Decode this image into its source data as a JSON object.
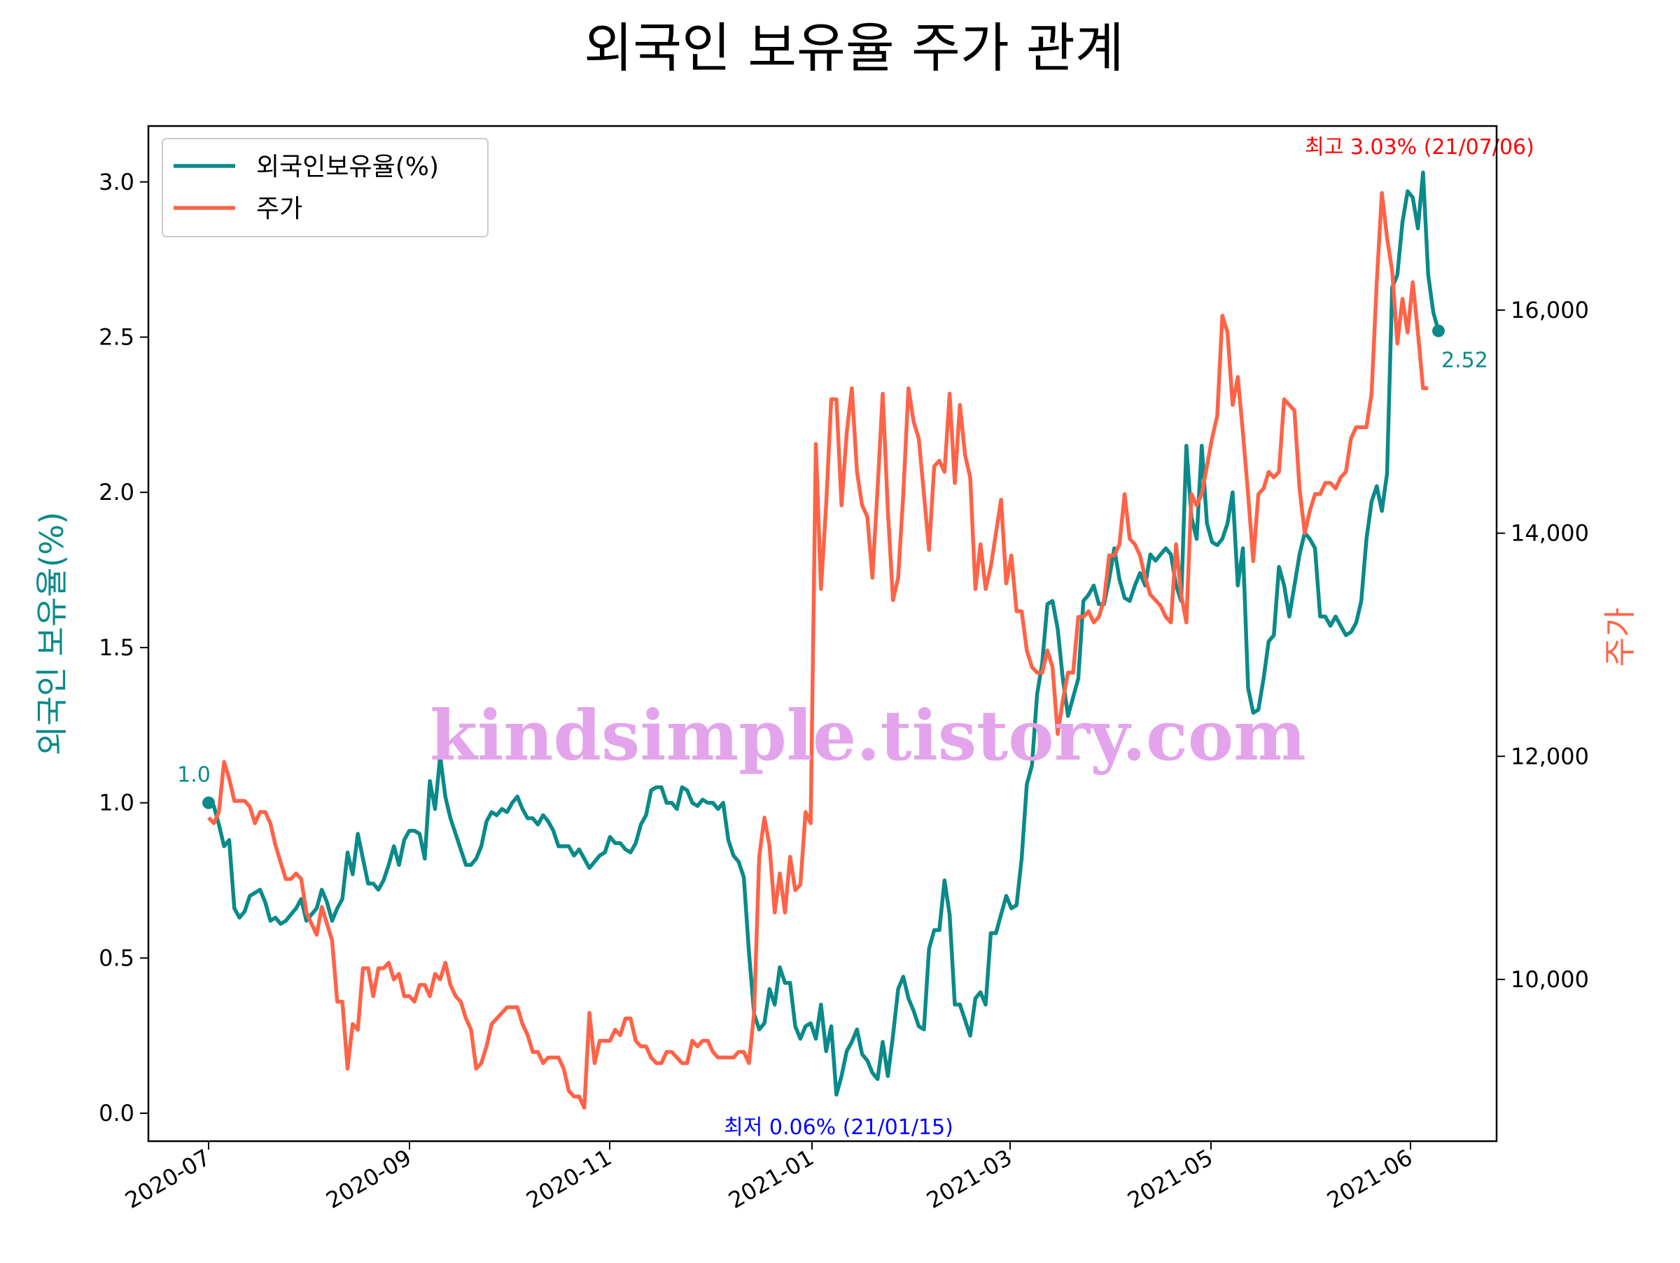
{
  "chart_data": {
    "type": "line",
    "title": "외국인 보유율 주가 관계",
    "ylabel_left": "외국인 보유율(%)",
    "ylabel_right": "주가",
    "ylim_left": [
      -0.09,
      3.18
    ],
    "ylim_right": [
      8550,
      17650
    ],
    "yticks_left": [
      "0.0",
      "0.5",
      "1.0",
      "1.5",
      "2.0",
      "2.5",
      "3.0"
    ],
    "yticks_right": [
      "10,000",
      "12,000",
      "14,000",
      "16,000"
    ],
    "xticks": [
      "2020-07",
      "2020-09",
      "2020-11",
      "2021-01",
      "2021-03",
      "2021-05",
      "2021-06"
    ],
    "legend": {
      "position": "upper left",
      "entries": [
        "외국인보유율(%)",
        "주가"
      ]
    },
    "colors": {
      "ownership": "#0a8a8a",
      "price": "#ff6347",
      "max_annotation": "#ff0000",
      "min_annotation": "#0000ff",
      "watermark": "#e3a4ec"
    },
    "annotations": {
      "start": "1.0",
      "end": "2.52",
      "max": "최고 3.03% (21/07/06)",
      "min": "최저 0.06% (21/01/15)"
    },
    "watermark": "kindsimple.tistory.com",
    "series": [
      {
        "name": "외국인보유율(%)",
        "axis": "left",
        "values": [
          1.0,
          0.99,
          0.93,
          0.86,
          0.88,
          0.66,
          0.63,
          0.65,
          0.7,
          0.71,
          0.72,
          0.68,
          0.62,
          0.63,
          0.61,
          0.62,
          0.64,
          0.66,
          0.69,
          0.62,
          0.64,
          0.66,
          0.72,
          0.68,
          0.62,
          0.66,
          0.69,
          0.84,
          0.77,
          0.9,
          0.82,
          0.74,
          0.74,
          0.72,
          0.75,
          0.8,
          0.86,
          0.8,
          0.88,
          0.91,
          0.91,
          0.9,
          0.82,
          1.07,
          0.98,
          1.15,
          1.02,
          0.95,
          0.9,
          0.85,
          0.8,
          0.8,
          0.82,
          0.86,
          0.94,
          0.97,
          0.96,
          0.98,
          0.97,
          1.0,
          1.02,
          0.98,
          0.95,
          0.95,
          0.93,
          0.96,
          0.94,
          0.91,
          0.86,
          0.86,
          0.86,
          0.83,
          0.85,
          0.82,
          0.79,
          0.81,
          0.83,
          0.84,
          0.89,
          0.87,
          0.87,
          0.85,
          0.84,
          0.87,
          0.93,
          0.96,
          1.04,
          1.05,
          1.05,
          1.0,
          1.0,
          0.98,
          1.05,
          1.04,
          1.0,
          0.99,
          1.01,
          1.0,
          1.0,
          0.98,
          1.0,
          0.88,
          0.83,
          0.81,
          0.76,
          0.52,
          0.32,
          0.27,
          0.29,
          0.4,
          0.35,
          0.47,
          0.42,
          0.42,
          0.28,
          0.24,
          0.28,
          0.29,
          0.24,
          0.35,
          0.2,
          0.28,
          0.06,
          0.12,
          0.2,
          0.23,
          0.27,
          0.19,
          0.17,
          0.13,
          0.11,
          0.23,
          0.12,
          0.25,
          0.4,
          0.44,
          0.37,
          0.33,
          0.28,
          0.27,
          0.53,
          0.59,
          0.59,
          0.75,
          0.64,
          0.35,
          0.35,
          0.3,
          0.25,
          0.37,
          0.39,
          0.35,
          0.58,
          0.58,
          0.64,
          0.7,
          0.66,
          0.67,
          0.82,
          1.06,
          1.12,
          1.35,
          1.45,
          1.64,
          1.65,
          1.56,
          1.4,
          1.28,
          1.34,
          1.4,
          1.65,
          1.67,
          1.7,
          1.64,
          1.64,
          1.72,
          1.82,
          1.72,
          1.66,
          1.65,
          1.7,
          1.74,
          1.7,
          1.8,
          1.78,
          1.8,
          1.82,
          1.8,
          1.7,
          1.65,
          2.15,
          1.92,
          1.85,
          2.15,
          1.9,
          1.84,
          1.83,
          1.85,
          1.9,
          2.0,
          1.7,
          1.82,
          1.37,
          1.29,
          1.3,
          1.4,
          1.52,
          1.54,
          1.76,
          1.7,
          1.6,
          1.7,
          1.8,
          1.87,
          1.85,
          1.82,
          1.6,
          1.6,
          1.57,
          1.6,
          1.57,
          1.54,
          1.55,
          1.58,
          1.65,
          1.85,
          1.97,
          2.02,
          1.94,
          2.06,
          2.66,
          2.7,
          2.87,
          2.97,
          2.95,
          2.85,
          3.03,
          2.7,
          2.58,
          2.52
        ]
      },
      {
        "name": "주가",
        "axis": "right",
        "values": [
          11450,
          11400,
          11500,
          11950,
          11800,
          11600,
          11600,
          11600,
          11550,
          11400,
          11500,
          11500,
          11400,
          11200,
          11050,
          10900,
          10900,
          10950,
          10900,
          10600,
          10500,
          10400,
          10650,
          10500,
          10350,
          9800,
          9800,
          9200,
          9600,
          9550,
          10100,
          10100,
          9850,
          10100,
          10100,
          10150,
          10000,
          10050,
          9850,
          9850,
          9800,
          9950,
          9950,
          9850,
          10050,
          10000,
          10150,
          9950,
          9850,
          9800,
          9650,
          9550,
          9200,
          9250,
          9400,
          9600,
          9650,
          9700,
          9750,
          9750,
          9750,
          9600,
          9500,
          9350,
          9350,
          9250,
          9300,
          9300,
          9300,
          9200,
          9000,
          8950,
          8950,
          8850,
          9700,
          9250,
          9450,
          9450,
          9450,
          9550,
          9500,
          9650,
          9650,
          9450,
          9400,
          9400,
          9300,
          9250,
          9250,
          9350,
          9350,
          9300,
          9250,
          9250,
          9450,
          9400,
          9450,
          9450,
          9350,
          9300,
          9300,
          9300,
          9300,
          9350,
          9350,
          9250,
          9700,
          11100,
          11450,
          11200,
          10600,
          10950,
          10600,
          11100,
          10800,
          10850,
          11500,
          11400,
          14800,
          13500,
          14250,
          15200,
          15200,
          14250,
          14900,
          15300,
          14550,
          14250,
          14150,
          13600,
          14400,
          15250,
          14200,
          13400,
          13600,
          14350,
          15300,
          15000,
          14850,
          14350,
          13850,
          14600,
          14650,
          14550,
          15250,
          14450,
          15150,
          14700,
          14500,
          13500,
          13900,
          13500,
          13700,
          14000,
          14300,
          13550,
          13800,
          13300,
          13300,
          12950,
          12800,
          12750,
          12750,
          12950,
          12800,
          12200,
          12500,
          12750,
          12750,
          13250,
          13250,
          13300,
          13200,
          13250,
          13400,
          13800,
          13800,
          13900,
          14350,
          13950,
          13900,
          13800,
          13600,
          13450,
          13400,
          13350,
          13250,
          13200,
          13900,
          13450,
          13200,
          14350,
          14250,
          14350,
          14600,
          14850,
          15050,
          15950,
          15800,
          15150,
          15400,
          14900,
          14350,
          13750,
          14350,
          14400,
          14550,
          14500,
          14550,
          15200,
          15150,
          15100,
          14400,
          14000,
          14200,
          14350,
          14350,
          14450,
          14450,
          14400,
          14500,
          14550,
          14850,
          14950,
          14950,
          14950,
          15250,
          16250,
          17050,
          16650,
          16350,
          15700,
          16100,
          15800,
          16250,
          15800,
          15300,
          15300
        ]
      }
    ]
  }
}
